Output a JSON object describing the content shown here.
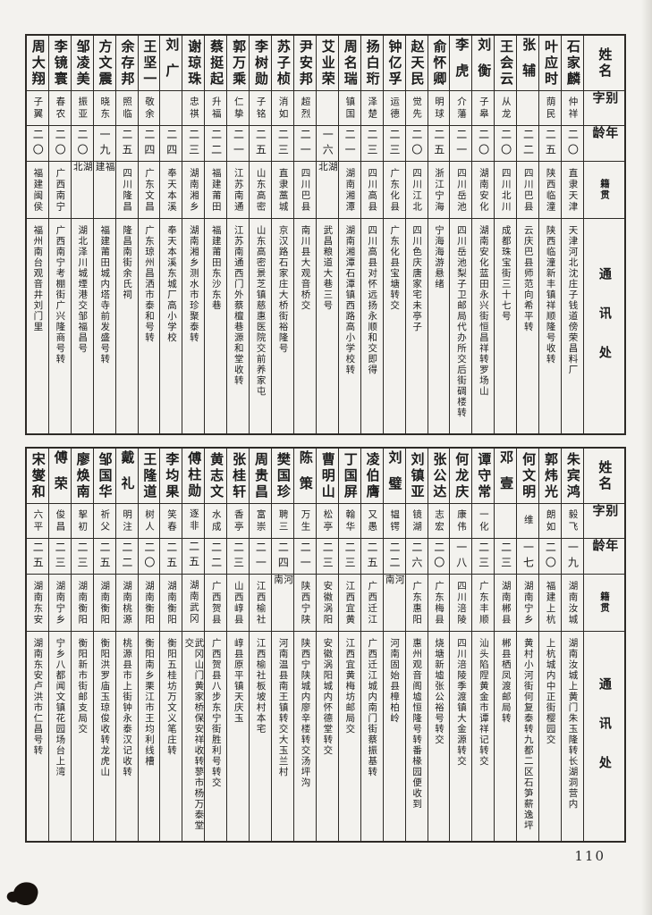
{
  "page": {
    "number": "110"
  },
  "colors": {
    "paper": "#f3f2ee",
    "ink": "#1c1c1c",
    "line": "#2d2a26"
  },
  "headers": {
    "name": "姓名",
    "zi": "别字",
    "age": "年龄",
    "native": "籍贯",
    "contact": "通讯处"
  },
  "tables": [
    {
      "persons": [
        {
          "name": "石家麟",
          "zi": "仲祥",
          "age": "二〇",
          "native": "直隶天津",
          "addr": "天津河北沈庄子钱道傍荣昌料厂"
        },
        {
          "name": "叶应时",
          "zi": "荫民",
          "age": "二五",
          "native": "陕西临潼",
          "addr": "陕西临潼新丰镇祥顺隆号收转"
        },
        {
          "name": "张辅",
          "zi": "",
          "age": "二二",
          "native": "四川巴县",
          "addr": "云庆巴县师范向希平转"
        },
        {
          "name": "王会云",
          "zi": "从龙",
          "age": "二〇",
          "native": "四川北川",
          "addr": "成都珠宝街三十七号"
        },
        {
          "name": "刘衡",
          "zi": "子皋",
          "age": "二〇",
          "native": "湖南安化",
          "addr": "湖南安化蓝田永兴街恒昌祥转罗场山"
        },
        {
          "name": "李虎",
          "zi": "介藩",
          "age": "二一",
          "native": "四川岳池",
          "addr": "四川岳池梨子卫邮局代办所交后街碉楼转"
        },
        {
          "name": "俞怀卿",
          "zi": "明球",
          "age": "二五",
          "native": "浙江宁海",
          "addr": "宁海海游悬绪"
        },
        {
          "name": "赵天民",
          "zi": "觉先",
          "age": "二〇",
          "native": "四川江北",
          "addr": "四川色庆唐家宅未亭子"
        },
        {
          "name": "钟亿孚",
          "zi": "运德",
          "age": "二三",
          "native": "广东化县",
          "addr": "广东化县宝塘转交"
        },
        {
          "name": "扬白珩",
          "zi": "泽楚",
          "age": "二三",
          "native": "四川高县",
          "addr": "四川高县对怀远扬永顺和交即得"
        },
        {
          "name": "周名瑞",
          "zi": "镇国",
          "age": "二一",
          "native": "湖南湘潭",
          "addr": "湖南湘潭石潭镇西路高小学校转"
        },
        {
          "name": "艾业荣",
          "zi": "",
          "age": "一六",
          "native": "湖北",
          "addr": "武昌粮道大巷三号"
        },
        {
          "name": "尹安邦",
          "zi": "超烈",
          "age": "二一",
          "native": "四川巴县",
          "addr": "南川县大观音桥交"
        },
        {
          "name": "苏子桢",
          "zi": "消如",
          "age": "二三",
          "native": "直隶藁城",
          "addr": "京汉路石家庄大桥街裕隆号"
        },
        {
          "name": "李树勋",
          "zi": "子铭",
          "age": "二五",
          "native": "山东高密",
          "addr": "山东高密景芝镇慈惠医院交前养家屯"
        },
        {
          "name": "郭万乘",
          "zi": "仁挚",
          "age": "二一",
          "native": "江苏南通",
          "addr": "江苏南通西门外蔡檀巷源和堂收转"
        },
        {
          "name": "蔡挺起",
          "zi": "升福",
          "age": "二二",
          "native": "福建莆田",
          "addr": "福建莆田东沙东巷"
        },
        {
          "name": "谢琼珠",
          "zi": "忠祺",
          "age": "二三",
          "native": "湖南湘乡",
          "addr": "湖南湘乡测水市珍聚泰转"
        },
        {
          "name": "刘广",
          "zi": "",
          "age": "二四",
          "native": "奉天本溪",
          "addr": "奉天本溪东城厂高小学校"
        },
        {
          "name": "王坚一",
          "zi": "敬余",
          "age": "二四",
          "native": "广东文昌",
          "addr": "广东琼州昌洒市泰和号转"
        },
        {
          "name": "余存邦",
          "zi": "照临",
          "age": "二五",
          "native": "四川隆昌",
          "addr": "隆昌南街余氏祠"
        },
        {
          "name": "方文震",
          "zi": "晓东",
          "age": "一九",
          "native": "福建",
          "addr": "福建莆田城内塔寺前发盛号转"
        },
        {
          "name": "邹凌美",
          "zi": "振亚",
          "age": "二〇",
          "native": "湖北",
          "addr": "湖北泽川城堙港交邹福昌号"
        },
        {
          "name": "李镜寰",
          "zi": "春农",
          "age": "二〇",
          "native": "广西南宁",
          "addr": "广西南宁考棚街广兴隆商号转"
        },
        {
          "name": "周大翔",
          "zi": "子翼",
          "age": "二〇",
          "native": "福建闽侯",
          "addr": "福州南台观音井刘门里"
        }
      ]
    },
    {
      "persons": [
        {
          "name": "朱宾鸿",
          "zi": "毅飞",
          "age": "一九",
          "native": "湖南汝城",
          "addr": "湖南汝城上黄门朱玉隆转长湖洞营内"
        },
        {
          "name": "郭炜光",
          "zi": "朗如",
          "age": "二〇",
          "native": "福建上杭",
          "addr": "上杭城内中正街樱园交"
        },
        {
          "name": "何文明",
          "zi": "维",
          "age": "一七",
          "native": "湖南宁乡",
          "addr": "黄村小河街何复泰转九都二区石笋薪逸坪"
        },
        {
          "name": "邓壹",
          "zi": "",
          "age": "二三",
          "native": "湖南郴县",
          "addr": "郴县栖凤渡邮局转"
        },
        {
          "name": "谭守常",
          "zi": "一化",
          "age": "二三",
          "native": "广东丰顺",
          "addr": "汕头陷陧黄金市谭祥记转交"
        },
        {
          "name": "何龙庆",
          "zi": "康伟",
          "age": "一八",
          "native": "四川涪陵",
          "addr": "四川涪陵季渡镇大金源转交"
        },
        {
          "name": "张公达",
          "zi": "志宏",
          "age": "二〇",
          "native": "广东梅县",
          "addr": "烧塘新墟张公裕号转交"
        },
        {
          "name": "刘镇亚",
          "zi": "镜湖",
          "age": "二六",
          "native": "广东惠阳",
          "addr": "惠州观音阁墟恒隆号转番椽园便收到"
        },
        {
          "name": "刘璧",
          "zi": "韫锷",
          "age": "二二",
          "native": "河南",
          "addr": "河南固始县樟柏岭"
        },
        {
          "name": "凌伯膺",
          "zi": "又愚",
          "age": "二五",
          "native": "广西迁江",
          "addr": "广西迁江城内南门街蔡振基转"
        },
        {
          "name": "丁国屏",
          "zi": "翰华",
          "age": "二三",
          "native": "江西宜黄",
          "addr": "江西宜黄梅坊邮局交"
        },
        {
          "name": "曹明山",
          "zi": "松亭",
          "age": "二三",
          "native": "安徽涡阳",
          "addr": "安徽涡阳城内怀德堂转交"
        },
        {
          "name": "陈策",
          "zi": "万生",
          "age": "二一",
          "native": "陕西宁陕",
          "addr": "陕西宁陕城内廖辛楼转交汤坪沟"
        },
        {
          "name": "樊国珍",
          "zi": "聘三",
          "age": "二四",
          "native": "河南",
          "addr": "河南温县南王镇转交大玉兰村"
        },
        {
          "name": "周贵昌",
          "zi": "富崇",
          "age": "二一",
          "native": "江西榆社",
          "addr": "江西榆社板坡村本宅"
        },
        {
          "name": "张桂轩",
          "zi": "香亭",
          "age": "二三",
          "native": "山西崞县",
          "addr": "崞县原平镇天庆玉"
        },
        {
          "name": "黄志文",
          "zi": "水成",
          "age": "二二",
          "native": "广西贺县",
          "addr": "广西贺县八步东宁街胜利号转交"
        },
        {
          "name": "傅柱勋",
          "zi": "逐非",
          "age": "二五",
          "native": "湖南武冈",
          "addr": "武冈山门黄家桥保安祥收转蓼市杨万泰堂交"
        },
        {
          "name": "李均果",
          "zi": "笑春",
          "age": "二五",
          "native": "湖南衡阳",
          "addr": "衡阳五桂坊万文义笔庄转"
        },
        {
          "name": "王隆道",
          "zi": "树人",
          "age": "二〇",
          "native": "湖南衡阳",
          "addr": "衡阳南乡栗江市王均利线槽"
        },
        {
          "name": "戴礼",
          "zi": "明注",
          "age": "二二",
          "native": "湖南桃源",
          "addr": "桃源县市上街钟永泰汉记收转"
        },
        {
          "name": "邹国华",
          "zi": "祈父",
          "age": "二五",
          "native": "湖南衡阳",
          "addr": "衡阳洪罗庙玉琼俊收转龙虎山"
        },
        {
          "name": "廖焕南",
          "zi": "挐初",
          "age": "二三",
          "native": "湖南衡阳",
          "addr": "衡阳新市街邮支局交"
        },
        {
          "name": "傅荣",
          "zi": "俊昌",
          "age": "二三",
          "native": "湖南宁乡",
          "addr": "宁乡八都闻文镇花园场台上湾"
        },
        {
          "name": "宋燮和",
          "zi": "六平",
          "age": "二五",
          "native": "湖南东安",
          "addr": "湖南东安卢洪市仁昌号转"
        }
      ]
    }
  ]
}
